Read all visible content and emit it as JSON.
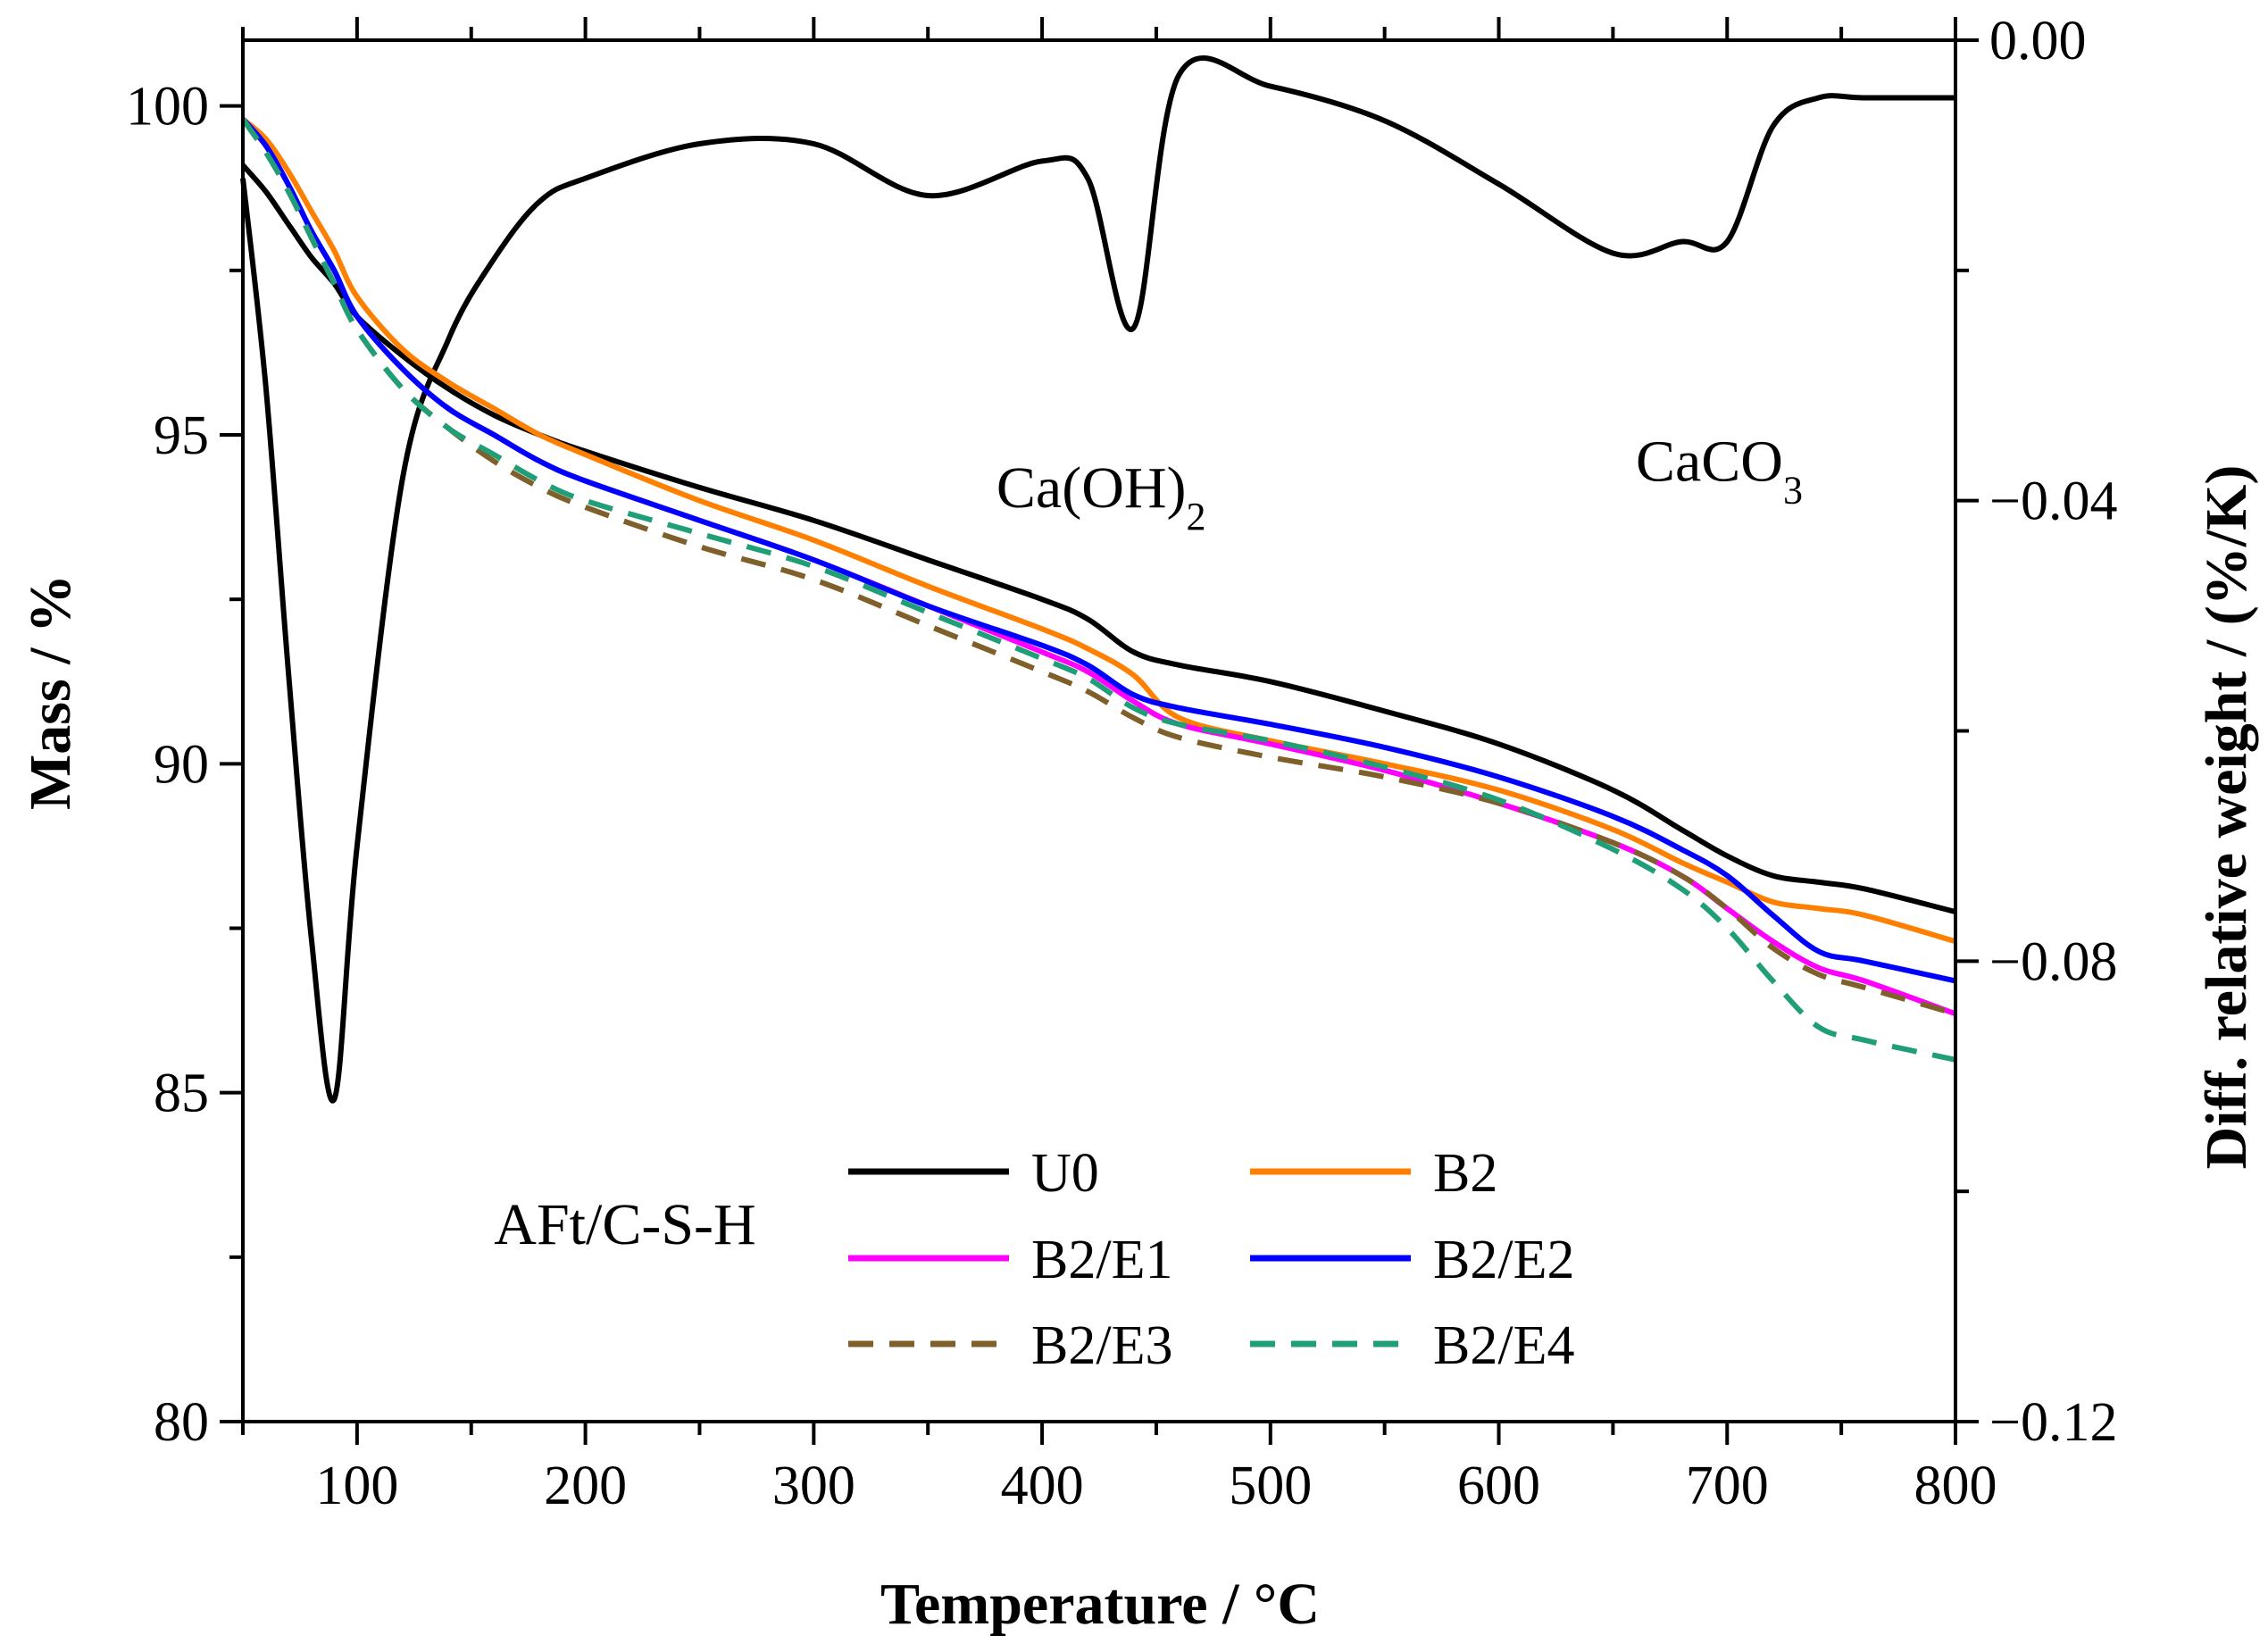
{
  "chart_data": {
    "type": "line",
    "title": "",
    "xlabel": "Temperature / °C",
    "ylabel_left": "Mass / %",
    "ylabel_right": "Diff. relative weight / (%/K)",
    "xlim": [
      50,
      800
    ],
    "ylim_left": [
      80,
      101
    ],
    "ylim_right": [
      -0.12,
      0.0
    ],
    "x_ticks": [
      100,
      200,
      300,
      400,
      500,
      600,
      700,
      800
    ],
    "y_left_ticks": [
      80,
      85,
      90,
      95,
      100
    ],
    "y_right_ticks": [
      -0.12,
      -0.08,
      -0.04,
      0.0
    ],
    "y_right_tick_labels": [
      "−0.12",
      "−0.08",
      "−0.04",
      "0.00"
    ],
    "grid": false,
    "legend_position": "bottom-center",
    "annotations": [
      {
        "text": "AFt/C-S-H",
        "x": 160,
        "y_left": 82.7
      },
      {
        "text": "Ca(OH)",
        "sub": "2",
        "x": 380,
        "y_left": 93.9
      },
      {
        "text": "CaCO",
        "sub": "3",
        "x": 660,
        "y_left": 94.3
      }
    ],
    "x": [
      50,
      60,
      70,
      80,
      90,
      100,
      120,
      140,
      160,
      180,
      200,
      250,
      300,
      350,
      400,
      420,
      440,
      460,
      500,
      550,
      600,
      650,
      680,
      700,
      720,
      740,
      760,
      800
    ],
    "series": [
      {
        "name": "U0",
        "color": "#000000",
        "dash": "solid",
        "mass": [
          99.1,
          98.7,
          98.2,
          97.7,
          97.3,
          96.8,
          96.2,
          95.7,
          95.3,
          95.0,
          94.75,
          94.2,
          93.7,
          93.1,
          92.5,
          92.2,
          91.7,
          91.5,
          91.25,
          90.8,
          90.3,
          89.6,
          89.0,
          88.6,
          88.3,
          88.2,
          88.1,
          87.75
        ],
        "dtg": [
          -0.012,
          -0.03,
          -0.055,
          -0.078,
          -0.092,
          -0.07,
          -0.038,
          -0.026,
          -0.019,
          -0.014,
          -0.012,
          -0.009,
          -0.009,
          -0.0135,
          -0.0105,
          -0.012,
          -0.025,
          -0.003,
          -0.004,
          -0.007,
          -0.0125,
          -0.0185,
          -0.0175,
          -0.0175,
          -0.0075,
          -0.005,
          -0.005,
          -0.005
        ]
      },
      {
        "name": "B2",
        "color": "#ff7f00",
        "dash": "solid",
        "mass": [
          99.8,
          99.5,
          99.0,
          98.4,
          97.8,
          97.1,
          96.3,
          95.8,
          95.4,
          95.0,
          94.7,
          94.0,
          93.4,
          92.7,
          92.05,
          91.75,
          91.35,
          90.7,
          90.35,
          90.0,
          89.6,
          89.0,
          88.5,
          88.2,
          87.9,
          87.8,
          87.7,
          87.3
        ]
      },
      {
        "name": "B2/E1",
        "color": "#ff00ff",
        "dash": "solid",
        "mass": [
          99.8,
          99.4,
          98.8,
          98.1,
          97.5,
          96.8,
          96.0,
          95.4,
          95.0,
          94.6,
          94.3,
          93.7,
          93.1,
          92.4,
          91.7,
          91.4,
          90.95,
          90.6,
          90.3,
          89.9,
          89.4,
          88.8,
          88.3,
          87.8,
          87.3,
          86.9,
          86.7,
          86.2
        ]
      },
      {
        "name": "B2/E2",
        "color": "#0000ff",
        "dash": "solid",
        "mass": [
          99.8,
          99.4,
          98.8,
          98.1,
          97.5,
          96.8,
          96.0,
          95.4,
          95.0,
          94.6,
          94.3,
          93.7,
          93.1,
          92.4,
          91.8,
          91.5,
          91.05,
          90.85,
          90.6,
          90.25,
          89.8,
          89.2,
          88.7,
          88.3,
          87.7,
          87.15,
          87.0,
          86.7
        ]
      },
      {
        "name": "B2/E3",
        "color": "#7f5f2a",
        "dash": "dashed",
        "mass": [
          99.8,
          99.3,
          98.7,
          98.0,
          97.3,
          96.6,
          95.7,
          95.1,
          94.6,
          94.2,
          93.9,
          93.3,
          92.8,
          92.1,
          91.4,
          91.1,
          90.7,
          90.4,
          90.1,
          89.8,
          89.4,
          88.8,
          88.3,
          87.8,
          87.2,
          86.8,
          86.6,
          86.2
        ]
      },
      {
        "name": "B2/E4",
        "color": "#1f9e78",
        "dash": "dashed",
        "mass": [
          99.8,
          99.3,
          98.7,
          98.0,
          97.3,
          96.6,
          95.7,
          95.1,
          94.7,
          94.3,
          94.0,
          93.5,
          93.0,
          92.3,
          91.6,
          91.3,
          90.85,
          90.6,
          90.35,
          89.95,
          89.45,
          88.7,
          88.1,
          87.5,
          86.7,
          86.0,
          85.8,
          85.5
        ]
      }
    ]
  }
}
